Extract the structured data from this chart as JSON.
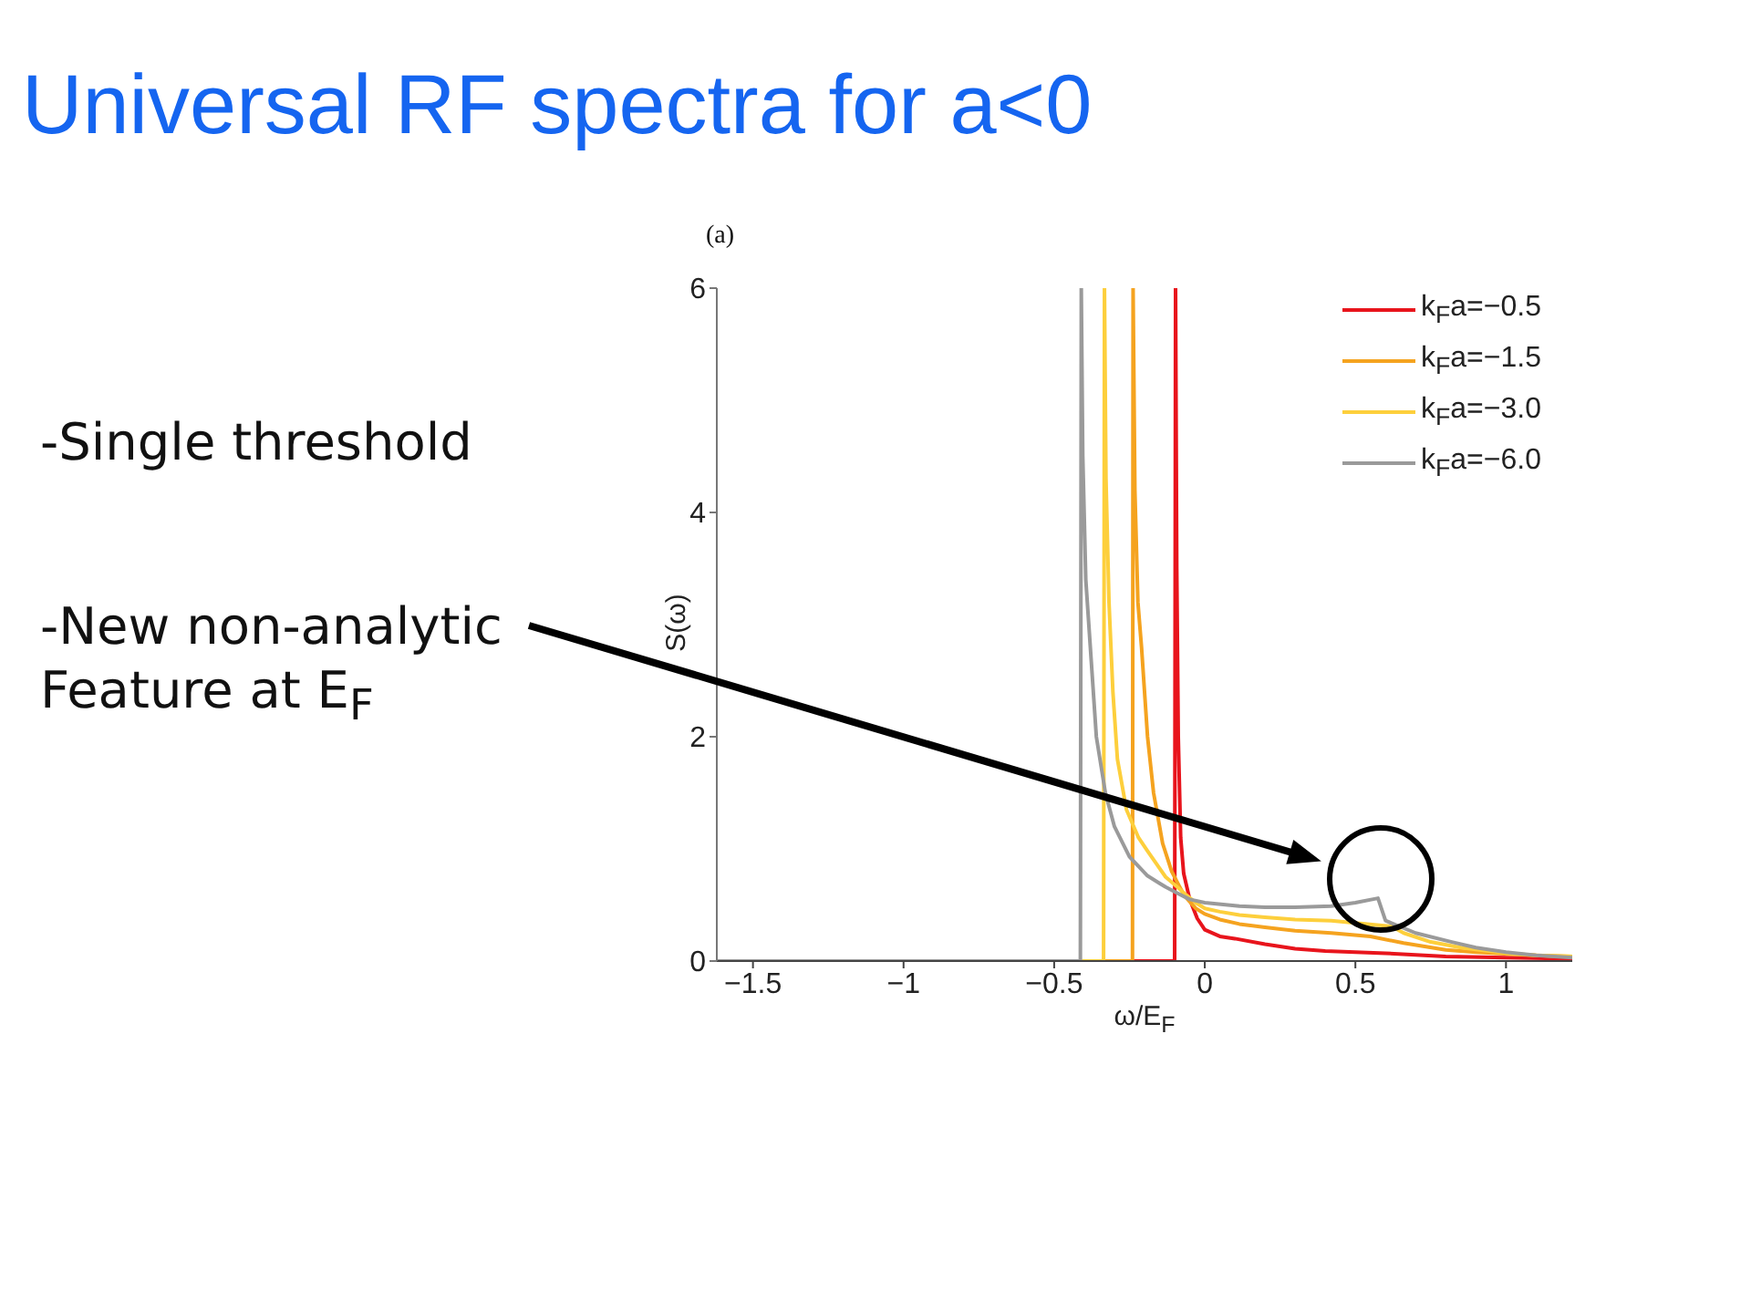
{
  "chart_data": {
    "type": "line",
    "title": "Universal RF spectra for a<0",
    "xlabel": "ω/E$_{F}$",
    "ylabel": "S(ω)",
    "annotations": [
      "(a)",
      "-Single threshold",
      "-New non-analytic Feature at E$_{F}$"
    ],
    "xlim": [
      -1.62,
      1.22
    ],
    "xticks": [
      -1.5,
      -1,
      -0.5,
      0,
      0.5,
      1
    ],
    "ylim": [
      0,
      6
    ],
    "yticks": [
      0,
      2,
      4,
      6
    ],
    "legend": "top right",
    "line_style": "solid",
    "series": [
      {
        "name": "k$_{F}$a=−0.5",
        "color": "#e8141c",
        "x": [
          -1.62,
          -0.1,
          -0.097,
          -0.093,
          -0.088,
          -0.08,
          -0.07,
          -0.05,
          -0.025,
          0,
          0.05,
          0.1,
          0.2,
          0.3,
          0.4,
          0.6,
          0.8,
          1.0,
          1.22
        ],
        "values": [
          0,
          0,
          6,
          3.5,
          2.0,
          1.1,
          0.78,
          0.55,
          0.38,
          0.28,
          0.22,
          0.2,
          0.15,
          0.11,
          0.09,
          0.07,
          0.04,
          0.03,
          0.02
        ]
      },
      {
        "name": "k$_{F}$a=−1.5",
        "color": "#f5a31f",
        "x": [
          -1.62,
          -0.24,
          -0.238,
          -0.232,
          -0.222,
          -0.21,
          -0.19,
          -0.17,
          -0.14,
          -0.11,
          -0.087,
          -0.067,
          -0.03,
          0,
          0.05,
          0.115,
          0.2,
          0.3,
          0.42,
          0.55,
          0.66,
          0.8,
          0.9,
          1.02,
          1.1,
          1.22
        ],
        "values": [
          0,
          0,
          6,
          4.2,
          3.2,
          2.8,
          2.0,
          1.5,
          1.05,
          0.8,
          0.68,
          0.58,
          0.47,
          0.42,
          0.37,
          0.33,
          0.3,
          0.27,
          0.25,
          0.22,
          0.16,
          0.1,
          0.08,
          0.06,
          0.05,
          0.04
        ]
      },
      {
        "name": "k$_{F}$a=−3.0",
        "color": "#fdcf3c",
        "x": [
          -1.62,
          -0.336,
          -0.333,
          -0.328,
          -0.318,
          -0.305,
          -0.29,
          -0.26,
          -0.22,
          -0.19,
          -0.13,
          -0.087,
          -0.066,
          -0.03,
          0,
          0.05,
          0.115,
          0.2,
          0.3,
          0.42,
          0.58,
          0.62,
          0.66,
          0.75,
          0.85,
          1.0,
          1.1,
          1.22
        ],
        "values": [
          0,
          0,
          6,
          4.3,
          3.2,
          2.4,
          1.8,
          1.35,
          1.1,
          0.98,
          0.75,
          0.65,
          0.6,
          0.52,
          0.47,
          0.44,
          0.41,
          0.39,
          0.37,
          0.36,
          0.32,
          0.31,
          0.25,
          0.17,
          0.12,
          0.07,
          0.05,
          0.04
        ]
      },
      {
        "name": "k$_{F}$a=−6.0",
        "color": "#9a9a9a",
        "x": [
          -1.62,
          -0.413,
          -0.41,
          -0.405,
          -0.395,
          -0.38,
          -0.36,
          -0.33,
          -0.3,
          -0.25,
          -0.19,
          -0.13,
          -0.087,
          -0.05,
          0,
          0.115,
          0.2,
          0.3,
          0.42,
          0.5,
          0.575,
          0.6,
          0.7,
          0.82,
          0.9,
          1.0,
          1.1,
          1.22
        ],
        "values": [
          0,
          0,
          6,
          4.5,
          3.4,
          2.8,
          2.0,
          1.5,
          1.2,
          0.93,
          0.76,
          0.66,
          0.6,
          0.55,
          0.52,
          0.49,
          0.48,
          0.48,
          0.49,
          0.52,
          0.56,
          0.36,
          0.25,
          0.17,
          0.12,
          0.08,
          0.05,
          0.03
        ]
      }
    ]
  }
}
